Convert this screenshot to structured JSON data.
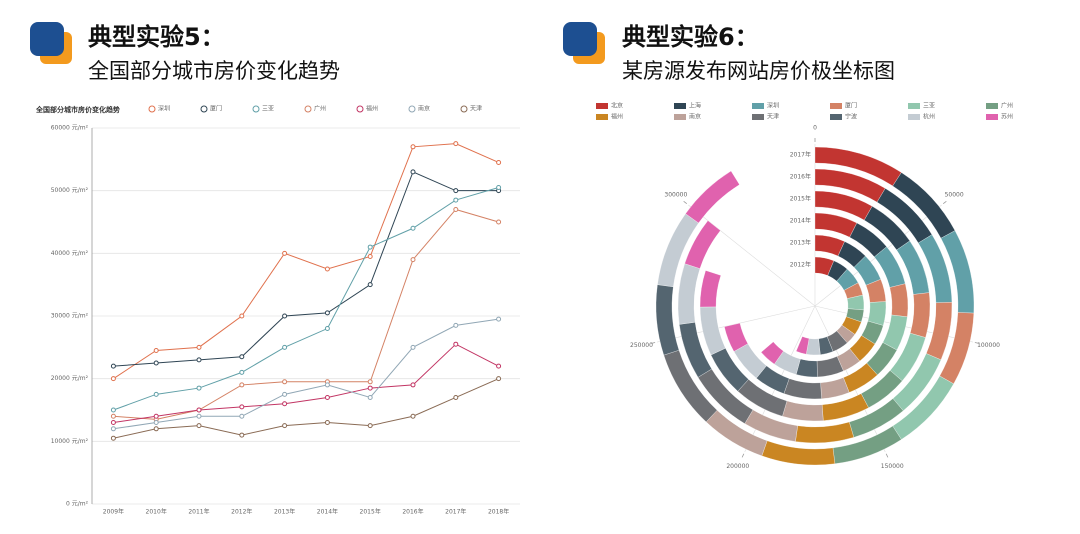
{
  "headings": [
    {
      "title": "典型实验5：",
      "subtitle": "全国部分城市房价变化趋势"
    },
    {
      "title": "典型实验6：",
      "subtitle": "某房源发布网站房价极坐标图"
    }
  ],
  "chart_data": [
    {
      "type": "line",
      "title": "全国部分城市房价变化趋势",
      "x": [
        "2009年",
        "2010年",
        "2011年",
        "2012年",
        "2013年",
        "2014年",
        "2015年",
        "2016年",
        "2017年",
        "2018年"
      ],
      "ylim": [
        0,
        60000
      ],
      "yticks": [
        {
          "value": 0,
          "label": "0 元/m²"
        },
        {
          "value": 10000,
          "label": "10000 元/m²"
        },
        {
          "value": 20000,
          "label": "20000 元/m²"
        },
        {
          "value": 30000,
          "label": "30000 元/m²"
        },
        {
          "value": 40000,
          "label": "40000 元/m²"
        },
        {
          "value": 50000,
          "label": "50000 元/m²"
        },
        {
          "value": 60000,
          "label": "60000 元/m²"
        }
      ],
      "grid": true,
      "series": [
        {
          "name": "深圳",
          "color": "#e0714d",
          "values": [
            20000,
            24500,
            25000,
            30000,
            40000,
            37500,
            39500,
            57000,
            57500,
            54500
          ]
        },
        {
          "name": "厦门",
          "color": "#2f4554",
          "values": [
            22000,
            22500,
            23000,
            23500,
            30000,
            30500,
            35000,
            53000,
            50000,
            50000
          ]
        },
        {
          "name": "三亚",
          "color": "#61a0a8",
          "values": [
            15000,
            17500,
            18500,
            21000,
            25000,
            28000,
            41000,
            44000,
            48500,
            50500
          ]
        },
        {
          "name": "广州",
          "color": "#d48265",
          "values": [
            14000,
            13500,
            15000,
            19000,
            19500,
            19500,
            19500,
            39000,
            47000,
            45000
          ]
        },
        {
          "name": "福州",
          "color": "#c23564",
          "values": [
            13000,
            14000,
            15000,
            15500,
            16000,
            17000,
            18500,
            19000,
            25500,
            22000
          ]
        },
        {
          "name": "南京",
          "color": "#91a7b5",
          "values": [
            12000,
            13000,
            14000,
            14000,
            17500,
            19000,
            17000,
            25000,
            28500,
            29500
          ]
        },
        {
          "name": "天津",
          "color": "#8a6b55",
          "values": [
            10500,
            12000,
            12500,
            11000,
            12500,
            13000,
            12500,
            14000,
            17000,
            20000
          ]
        }
      ]
    },
    {
      "type": "polar-bar",
      "categories": [
        "2012年",
        "2013年",
        "2014年",
        "2015年",
        "2016年",
        "2017年"
      ],
      "xlim": [
        0,
        350000
      ],
      "xticks": [
        0,
        50000,
        100000,
        150000,
        200000,
        250000,
        300000
      ],
      "series": [
        {
          "name": "北京",
          "color": "#c23531",
          "values": [
            22000,
            24000,
            26000,
            29000,
            30000,
            32000
          ]
        },
        {
          "name": "上海",
          "color": "#2f4554",
          "values": [
            18000,
            20000,
            23000,
            25000,
            27000,
            28000
          ]
        },
        {
          "name": "深圳",
          "color": "#61a0a8",
          "values": [
            20000,
            22000,
            25000,
            27000,
            29000,
            30000
          ]
        },
        {
          "name": "厦门",
          "color": "#d48265",
          "values": [
            15000,
            18000,
            20000,
            22000,
            24000,
            26000
          ]
        },
        {
          "name": "三亚",
          "color": "#91c7ae",
          "values": [
            17000,
            19000,
            21000,
            24000,
            26000,
            27000
          ]
        },
        {
          "name": "广州",
          "color": "#749f83",
          "values": [
            14000,
            16000,
            19000,
            21000,
            23000,
            25000
          ]
        },
        {
          "name": "福州",
          "color": "#ca8622",
          "values": [
            16000,
            18000,
            20000,
            23000,
            24000,
            26000
          ]
        },
        {
          "name": "南京",
          "color": "#bda29a",
          "values": [
            13000,
            15000,
            17000,
            20000,
            22000,
            23000
          ]
        },
        {
          "name": "天津",
          "color": "#6e7074",
          "values": [
            19000,
            21000,
            23000,
            25000,
            27000,
            28000
          ]
        },
        {
          "name": "宁波",
          "color": "#546570",
          "values": [
            15000,
            17000,
            19000,
            22000,
            23000,
            25000
          ]
        },
        {
          "name": "杭州",
          "color": "#c4ccd3",
          "values": [
            16000,
            19000,
            21000,
            24000,
            25000,
            27000
          ]
        },
        {
          "name": "苏州",
          "color": "#e062ae",
          "values": [
            12000,
            14000,
            16000,
            18000,
            20000,
            22000
          ]
        }
      ]
    }
  ]
}
